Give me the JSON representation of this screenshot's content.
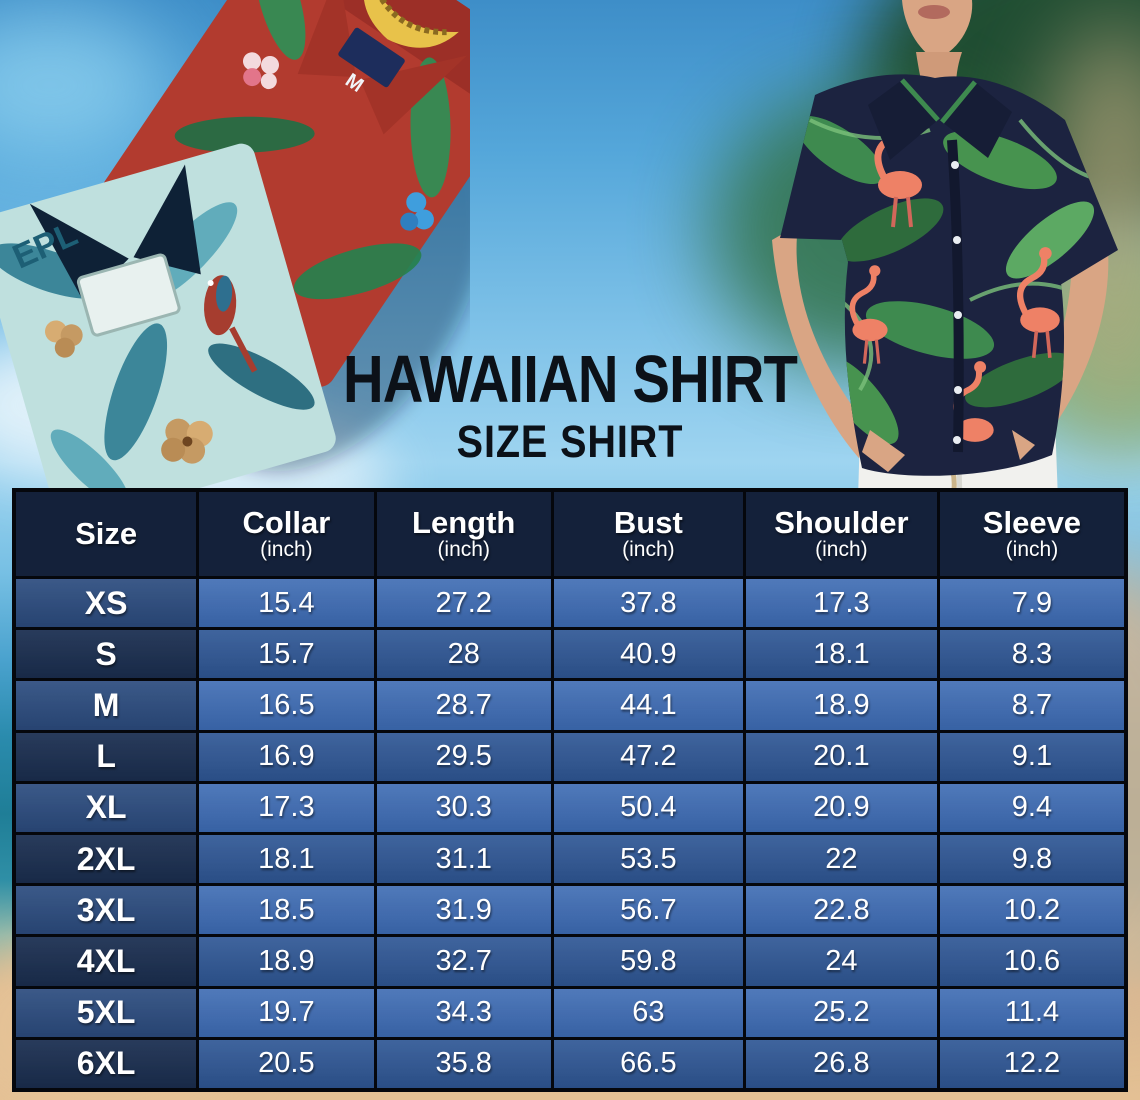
{
  "title": "HAWAIIAN SHIRT",
  "subtitle": "SIZE SHIRT",
  "size_table": {
    "columns": [
      {
        "label": "Size",
        "unit": ""
      },
      {
        "label": "Collar",
        "unit": "(inch)"
      },
      {
        "label": "Length",
        "unit": "(inch)"
      },
      {
        "label": "Bust",
        "unit": "(inch)"
      },
      {
        "label": "Shoulder",
        "unit": "(inch)"
      },
      {
        "label": "Sleeve",
        "unit": "(inch)"
      }
    ],
    "rows": [
      {
        "size": "XS",
        "values": [
          "15.4",
          "27.2",
          "37.8",
          "17.3",
          "7.9"
        ]
      },
      {
        "size": "S",
        "values": [
          "15.7",
          "28",
          "40.9",
          "18.1",
          "8.3"
        ]
      },
      {
        "size": "M",
        "values": [
          "16.5",
          "28.7",
          "44.1",
          "18.9",
          "8.7"
        ]
      },
      {
        "size": "L",
        "values": [
          "16.9",
          "29.5",
          "47.2",
          "20.1",
          "9.1"
        ]
      },
      {
        "size": "XL",
        "values": [
          "17.3",
          "30.3",
          "50.4",
          "20.9",
          "9.4"
        ]
      },
      {
        "size": "2XL",
        "values": [
          "18.1",
          "31.1",
          "53.5",
          "22",
          "9.8"
        ]
      },
      {
        "size": "3XL",
        "values": [
          "18.5",
          "31.9",
          "56.7",
          "22.8",
          "10.2"
        ]
      },
      {
        "size": "4XL",
        "values": [
          "18.9",
          "32.7",
          "59.8",
          "24",
          "10.6"
        ]
      },
      {
        "size": "5XL",
        "values": [
          "19.7",
          "34.3",
          "63",
          "25.2",
          "11.4"
        ]
      },
      {
        "size": "6XL",
        "values": [
          "20.5",
          "35.8",
          "66.5",
          "26.8",
          "12.2"
        ]
      }
    ]
  },
  "decor": {
    "red_shirt_tag": "M",
    "teal_shirt_print": "EPL"
  },
  "chart_data": {
    "type": "table",
    "title": "HAWAIIAN SHIRT",
    "subtitle": "SIZE SHIRT",
    "columns": [
      "Size",
      "Collar (inch)",
      "Length (inch)",
      "Bust (inch)",
      "Shoulder (inch)",
      "Sleeve (inch)"
    ],
    "rows": [
      [
        "XS",
        15.4,
        27.2,
        37.8,
        17.3,
        7.9
      ],
      [
        "S",
        15.7,
        28,
        40.9,
        18.1,
        8.3
      ],
      [
        "M",
        16.5,
        28.7,
        44.1,
        18.9,
        8.7
      ],
      [
        "L",
        16.9,
        29.5,
        47.2,
        20.1,
        9.1
      ],
      [
        "XL",
        17.3,
        30.3,
        50.4,
        20.9,
        9.4
      ],
      [
        "2XL",
        18.1,
        31.1,
        53.5,
        22,
        9.8
      ],
      [
        "3XL",
        18.5,
        31.9,
        56.7,
        22.8,
        10.2
      ],
      [
        "4XL",
        18.9,
        32.7,
        59.8,
        24,
        10.6
      ],
      [
        "5XL",
        19.7,
        34.3,
        63,
        25.2,
        11.4
      ],
      [
        "6XL",
        20.5,
        35.8,
        66.5,
        26.8,
        12.2
      ]
    ]
  },
  "colors": {
    "header_bg": "#14213a",
    "size_cell_bright": "#2b4b7e",
    "size_cell_dark": "#1b2f51",
    "value_cell_bright": "#3c6ab2",
    "value_cell_dark": "#2f5795",
    "grid_line": "#05070c",
    "table_text": "#ffffff",
    "title_text": "#0c1118",
    "sky_blue": "#55a7da",
    "ocean_teal": "#1f7e97",
    "sand": "#e4c094"
  }
}
